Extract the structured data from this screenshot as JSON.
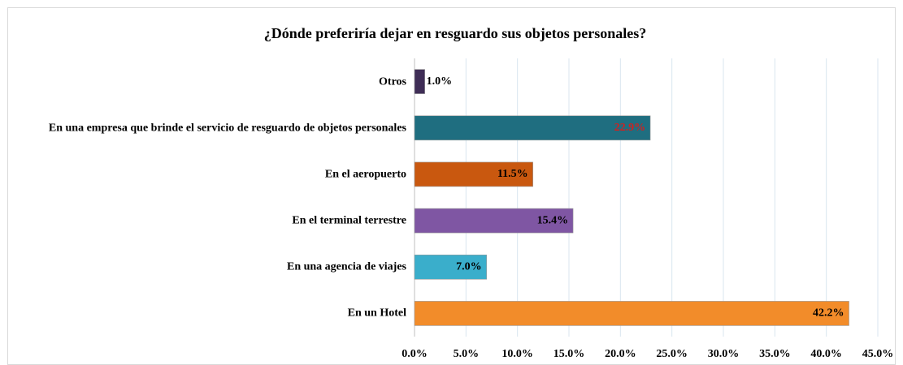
{
  "chart_data": {
    "type": "bar",
    "orientation": "horizontal",
    "title": "¿Dónde preferiría dejar en resguardo sus objetos personales?",
    "categories": [
      "Otros",
      "En una empresa que brinde el servicio de resguardo de objetos personales",
      "En el aeropuerto",
      "En el terminal terrestre",
      "En una agencia de viajes",
      "En un Hotel"
    ],
    "values": [
      1.0,
      22.9,
      11.5,
      15.4,
      7.0,
      42.2
    ],
    "value_labels": [
      "1.0%",
      "22.9%",
      "11.5%",
      "15.4%",
      "7.0%",
      "42.2%"
    ],
    "colors": [
      "#3f2d56",
      "#1f6e80",
      "#c9580f",
      "#7f56a3",
      "#3aaecb",
      "#f28c2a"
    ],
    "label_colors": [
      "#000000",
      "#d02020",
      "#000000",
      "#000000",
      "#000000",
      "#000000"
    ],
    "xlim": [
      0,
      45
    ],
    "xticks": [
      {
        "value": 0,
        "label": "0.0%"
      },
      {
        "value": 5,
        "label": "5.0%"
      },
      {
        "value": 10,
        "label": "10.0%"
      },
      {
        "value": 15,
        "label": "15.0%"
      },
      {
        "value": 20,
        "label": "20.0%"
      },
      {
        "value": 25,
        "label": "25.0%"
      },
      {
        "value": 30,
        "label": "30.0%"
      },
      {
        "value": 35,
        "label": "35.0%"
      },
      {
        "value": 40,
        "label": "40.0%"
      },
      {
        "value": 45,
        "label": "45.0%"
      }
    ],
    "grid": true
  }
}
